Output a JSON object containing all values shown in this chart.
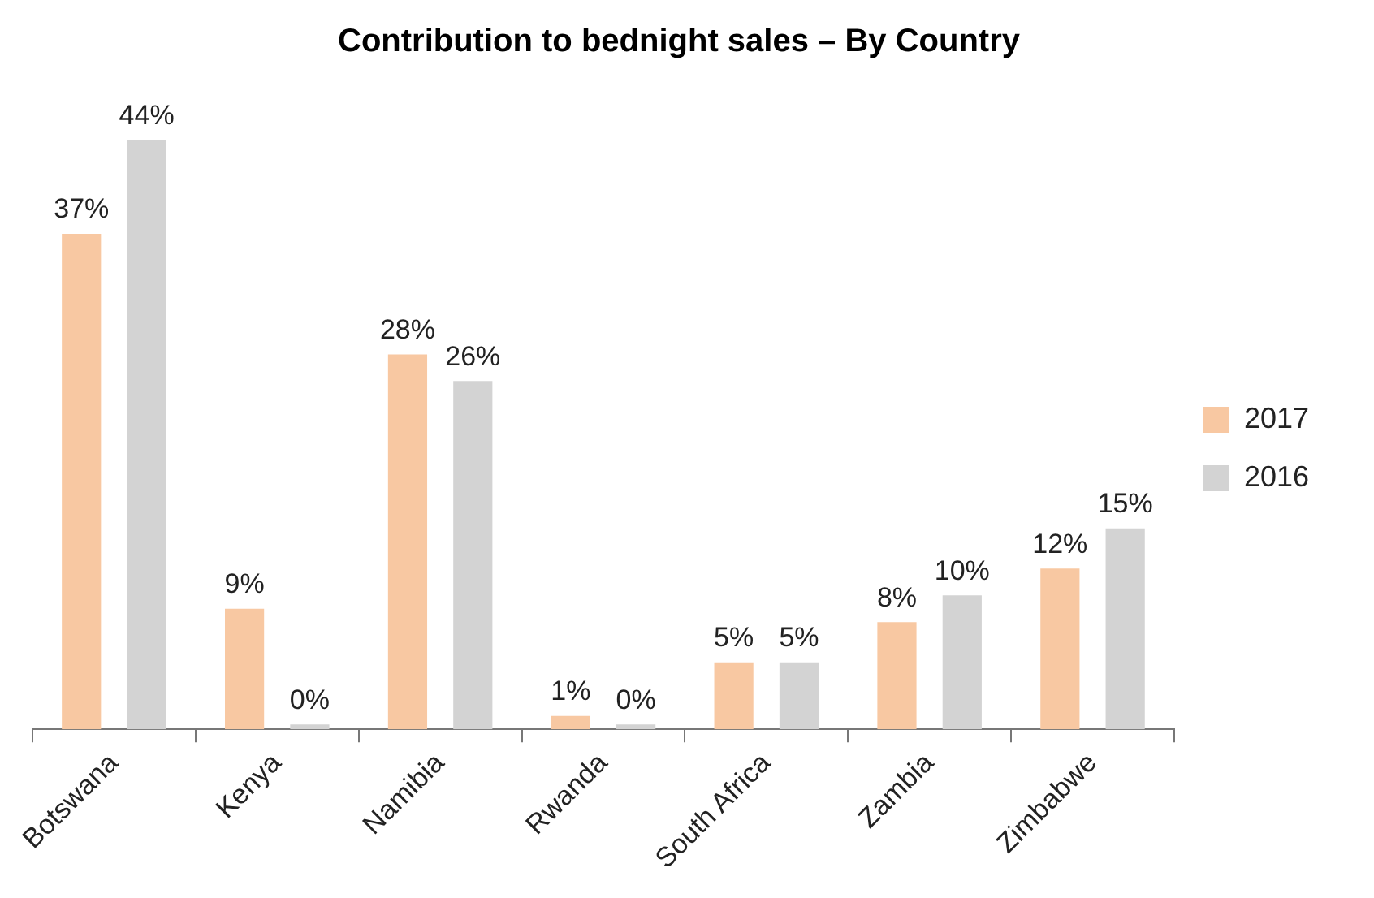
{
  "chart_data": {
    "type": "bar",
    "title": "Contribution to bednight sales – By Country",
    "categories": [
      "Botswana",
      "Kenya",
      "Namibia",
      "Rwanda",
      "South Africa",
      "Zambia",
      "Zimbabwe"
    ],
    "series": [
      {
        "name": "2017",
        "color": "#f8c8a2",
        "values": [
          37,
          9,
          28,
          1,
          5,
          8,
          12
        ],
        "value_labels": [
          "37%",
          "9%",
          "28%",
          "1%",
          "5%",
          "8%",
          "12%"
        ]
      },
      {
        "name": "2016",
        "color": "#d3d3d3",
        "values": [
          44,
          0,
          26,
          0,
          5,
          10,
          15
        ],
        "value_labels": [
          "44%",
          "0%",
          "26%",
          "0%",
          "5%",
          "10%",
          "15%"
        ]
      }
    ],
    "legend": "right",
    "grid": false
  }
}
